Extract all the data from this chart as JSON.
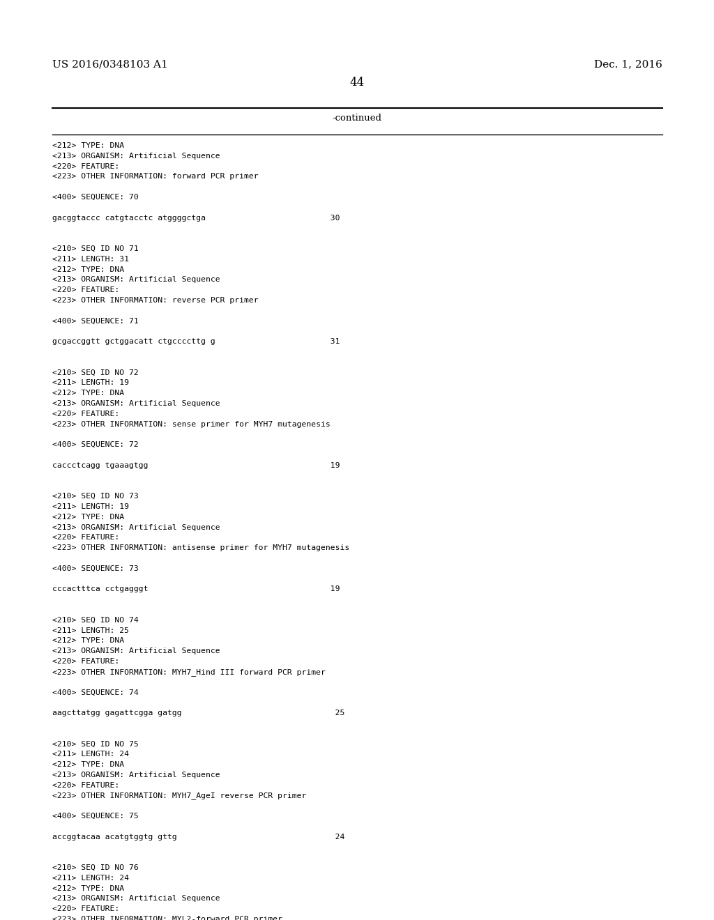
{
  "header_left": "US 2016/0348103 A1",
  "header_right": "Dec. 1, 2016",
  "page_number": "44",
  "continued_label": "-continued",
  "background_color": "#ffffff",
  "text_color": "#000000",
  "content_lines": [
    "<212> TYPE: DNA",
    "<213> ORGANISM: Artificial Sequence",
    "<220> FEATURE:",
    "<223> OTHER INFORMATION: forward PCR primer",
    "",
    "<400> SEQUENCE: 70",
    "",
    "gacggtaccc catgtacctc atggggctga                          30",
    "",
    "",
    "<210> SEQ ID NO 71",
    "<211> LENGTH: 31",
    "<212> TYPE: DNA",
    "<213> ORGANISM: Artificial Sequence",
    "<220> FEATURE:",
    "<223> OTHER INFORMATION: reverse PCR primer",
    "",
    "<400> SEQUENCE: 71",
    "",
    "gcgaccggtt gctggacatt ctgccccttg g                        31",
    "",
    "",
    "<210> SEQ ID NO 72",
    "<211> LENGTH: 19",
    "<212> TYPE: DNA",
    "<213> ORGANISM: Artificial Sequence",
    "<220> FEATURE:",
    "<223> OTHER INFORMATION: sense primer for MYH7 mutagenesis",
    "",
    "<400> SEQUENCE: 72",
    "",
    "caccctcagg tgaaagtgg                                      19",
    "",
    "",
    "<210> SEQ ID NO 73",
    "<211> LENGTH: 19",
    "<212> TYPE: DNA",
    "<213> ORGANISM: Artificial Sequence",
    "<220> FEATURE:",
    "<223> OTHER INFORMATION: antisense primer for MYH7 mutagenesis",
    "",
    "<400> SEQUENCE: 73",
    "",
    "cccactttca cctgagggt                                      19",
    "",
    "",
    "<210> SEQ ID NO 74",
    "<211> LENGTH: 25",
    "<212> TYPE: DNA",
    "<213> ORGANISM: Artificial Sequence",
    "<220> FEATURE:",
    "<223> OTHER INFORMATION: MYH7_Hind III forward PCR primer",
    "",
    "<400> SEQUENCE: 74",
    "",
    "aagcttatgg gagattcgga gatgg                                25",
    "",
    "",
    "<210> SEQ ID NO 75",
    "<211> LENGTH: 24",
    "<212> TYPE: DNA",
    "<213> ORGANISM: Artificial Sequence",
    "<220> FEATURE:",
    "<223> OTHER INFORMATION: MYH7_AgeI reverse PCR primer",
    "",
    "<400> SEQUENCE: 75",
    "",
    "accggtacaa acatgtggtg gttg                                 24",
    "",
    "",
    "<210> SEQ ID NO 76",
    "<211> LENGTH: 24",
    "<212> TYPE: DNA",
    "<213> ORGANISM: Artificial Sequence",
    "<220> FEATURE:",
    "<223> OTHER INFORMATION: MYL2-forward PCR primer"
  ]
}
